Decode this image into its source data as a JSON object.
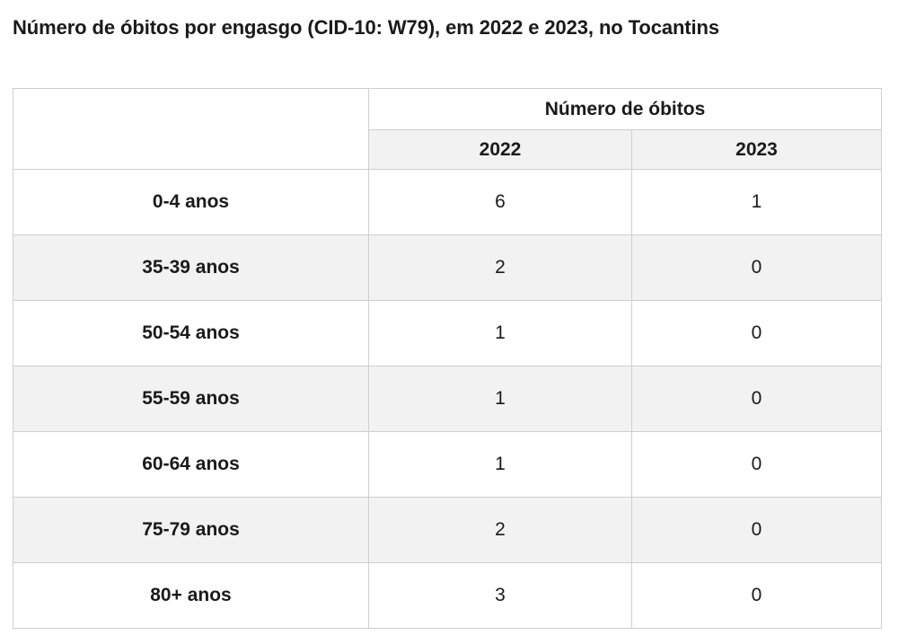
{
  "title": "Número de óbitos por engasgo (CID-10: W79), em 2022 e 2023, no Tocantins",
  "chart_data": {
    "type": "table",
    "title": "Número de óbitos por engasgo (CID-10: W79), em 2022 e 2023, no Tocantins",
    "column_group_label": "Número de óbitos",
    "columns": [
      "2022",
      "2023"
    ],
    "rows": [
      {
        "label": "0-4 anos",
        "values": [
          6,
          1
        ]
      },
      {
        "label": "35-39 anos",
        "values": [
          2,
          0
        ]
      },
      {
        "label": "50-54 anos",
        "values": [
          1,
          0
        ]
      },
      {
        "label": "55-59 anos",
        "values": [
          1,
          0
        ]
      },
      {
        "label": "60-64 anos",
        "values": [
          1,
          0
        ]
      },
      {
        "label": "75-79 anos",
        "values": [
          2,
          0
        ]
      },
      {
        "label": "80+ anos",
        "values": [
          3,
          0
        ]
      }
    ]
  }
}
